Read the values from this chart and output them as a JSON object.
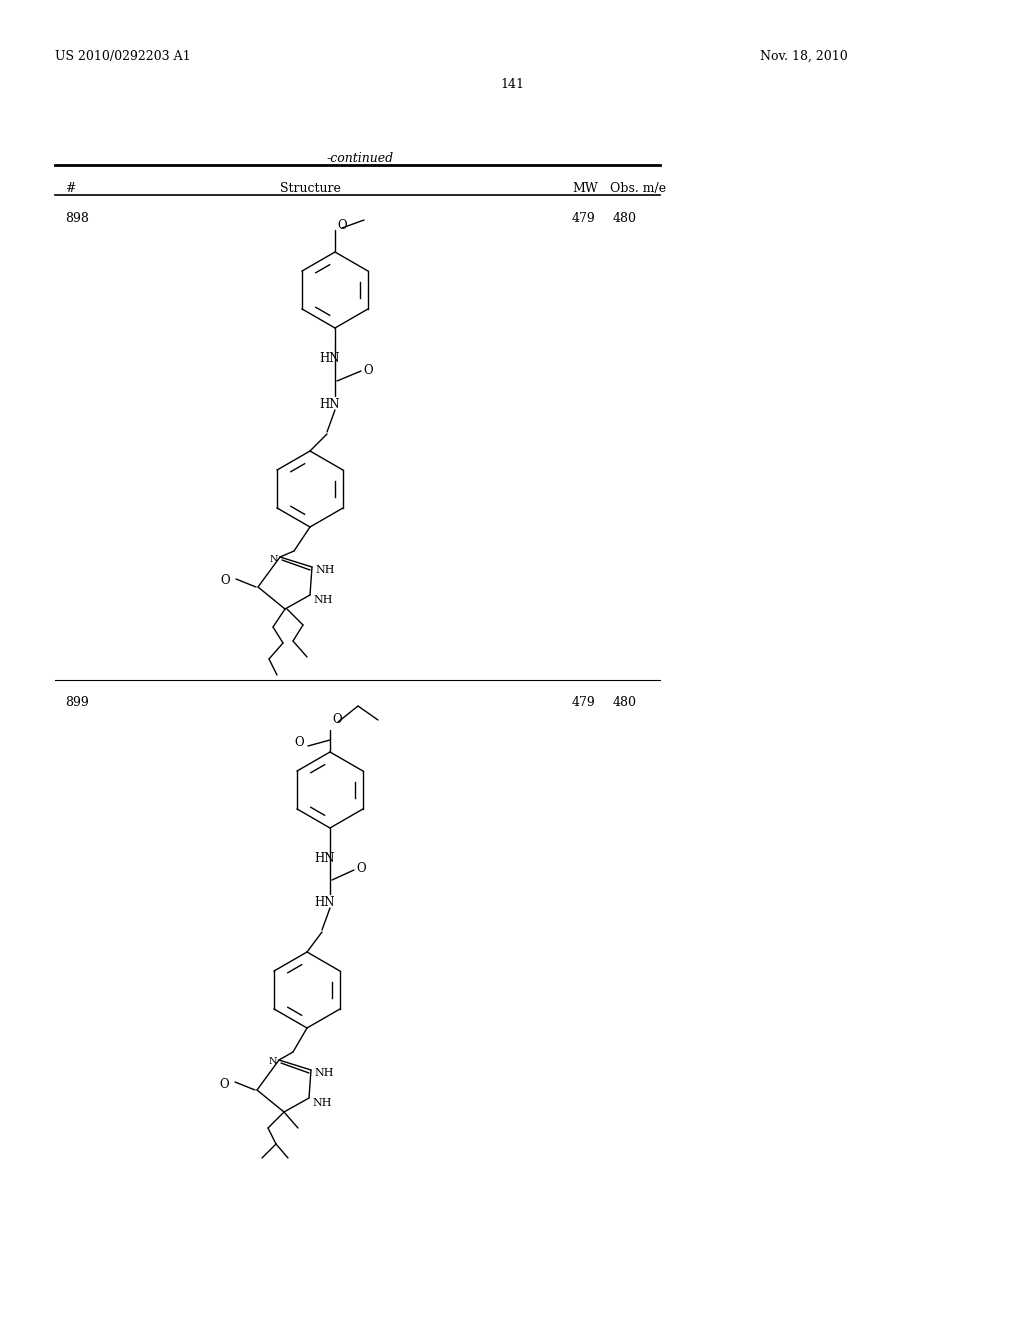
{
  "patent_number": "US 2010/0292203 A1",
  "patent_date": "Nov. 18, 2010",
  "page_number": "141",
  "table_header_continued": "-continued",
  "col_hash": "#",
  "col_structure": "Structure",
  "col_mw": "MW",
  "col_obs": "Obs. m/e",
  "bg_color": "#ffffff",
  "font_size_header": 9,
  "font_size_body": 8,
  "font_size_page": 9,
  "entry_898_number": "898",
  "entry_898_mw": "479",
  "entry_898_obs": "480",
  "entry_899_number": "899",
  "entry_899_mw": "479",
  "entry_899_obs": "480"
}
